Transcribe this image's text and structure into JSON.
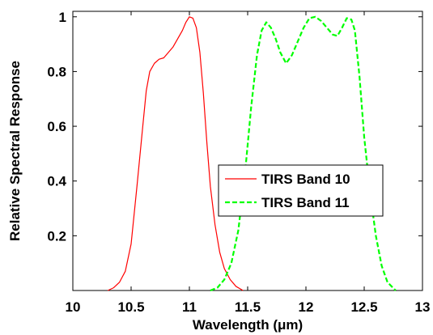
{
  "chart_data": {
    "type": "line",
    "title": "",
    "xlabel": "Wavelength (μm)",
    "ylabel": "Relative Spectral Response",
    "xlim": [
      10,
      13
    ],
    "ylim": [
      0,
      1.02
    ],
    "xticks": [
      10,
      10.5,
      11,
      11.5,
      12,
      12.5,
      13
    ],
    "xtick_labels": [
      "10",
      "10.5",
      "11",
      "11.5",
      "12",
      "12.5",
      "13"
    ],
    "yticks": [
      0.2,
      0.4,
      0.6,
      0.8,
      1
    ],
    "ytick_labels": [
      "0.2",
      "0.4",
      "0.6",
      "0.8",
      "1"
    ],
    "grid": false,
    "legend": {
      "placement": "center-right"
    },
    "series": [
      {
        "name": "TIRS Band 10",
        "color": "#ff0000",
        "line_style": "solid",
        "points": [
          [
            10.3,
            0.0
          ],
          [
            10.35,
            0.01
          ],
          [
            10.4,
            0.03
          ],
          [
            10.45,
            0.07
          ],
          [
            10.5,
            0.17
          ],
          [
            10.55,
            0.38
          ],
          [
            10.6,
            0.6
          ],
          [
            10.63,
            0.73
          ],
          [
            10.66,
            0.8
          ],
          [
            10.7,
            0.83
          ],
          [
            10.74,
            0.845
          ],
          [
            10.78,
            0.85
          ],
          [
            10.82,
            0.87
          ],
          [
            10.86,
            0.89
          ],
          [
            10.9,
            0.92
          ],
          [
            10.94,
            0.95
          ],
          [
            10.97,
            0.98
          ],
          [
            11.0,
            1.0
          ],
          [
            11.03,
            0.995
          ],
          [
            11.06,
            0.96
          ],
          [
            11.09,
            0.87
          ],
          [
            11.12,
            0.72
          ],
          [
            11.15,
            0.54
          ],
          [
            11.18,
            0.38
          ],
          [
            11.22,
            0.24
          ],
          [
            11.26,
            0.14
          ],
          [
            11.3,
            0.08
          ],
          [
            11.35,
            0.04
          ],
          [
            11.4,
            0.015
          ],
          [
            11.46,
            0.0
          ]
        ]
      },
      {
        "name": "TIRS Band 11",
        "color": "#00ff00",
        "line_style": "dashed",
        "points": [
          [
            11.18,
            0.0
          ],
          [
            11.24,
            0.01
          ],
          [
            11.3,
            0.04
          ],
          [
            11.36,
            0.1
          ],
          [
            11.42,
            0.22
          ],
          [
            11.48,
            0.44
          ],
          [
            11.53,
            0.67
          ],
          [
            11.58,
            0.86
          ],
          [
            11.62,
            0.95
          ],
          [
            11.66,
            0.98
          ],
          [
            11.7,
            0.96
          ],
          [
            11.74,
            0.92
          ],
          [
            11.78,
            0.87
          ],
          [
            11.83,
            0.83
          ],
          [
            11.88,
            0.86
          ],
          [
            11.93,
            0.91
          ],
          [
            11.98,
            0.96
          ],
          [
            12.03,
            0.995
          ],
          [
            12.08,
            1.0
          ],
          [
            12.13,
            0.985
          ],
          [
            12.18,
            0.96
          ],
          [
            12.23,
            0.935
          ],
          [
            12.27,
            0.93
          ],
          [
            12.31,
            0.96
          ],
          [
            12.35,
            0.995
          ],
          [
            12.39,
            0.99
          ],
          [
            12.42,
            0.95
          ],
          [
            12.46,
            0.78
          ],
          [
            12.5,
            0.56
          ],
          [
            12.55,
            0.36
          ],
          [
            12.6,
            0.2
          ],
          [
            12.65,
            0.09
          ],
          [
            12.7,
            0.03
          ],
          [
            12.77,
            0.0
          ]
        ]
      }
    ]
  }
}
